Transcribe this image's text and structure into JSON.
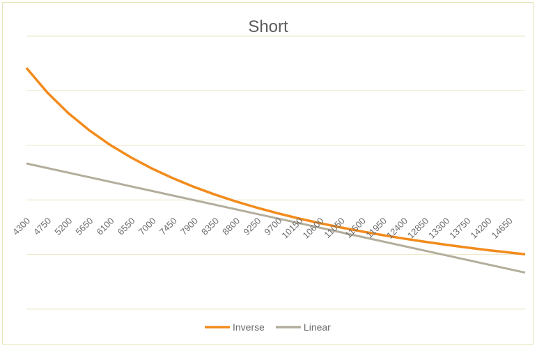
{
  "chart_data": {
    "type": "line",
    "title": "Short",
    "xlabel": "",
    "ylabel": "",
    "grid": true,
    "legend_position": "bottom",
    "x_tick_labels": [
      "4300",
      "4750",
      "5200",
      "5650",
      "6100",
      "6550",
      "7000",
      "7450",
      "7900",
      "8350",
      "8800",
      "9250",
      "9700",
      "10150",
      "10600",
      "11050",
      "11500",
      "11950",
      "12400",
      "12850",
      "13300",
      "13750",
      "14200",
      "14650"
    ],
    "x_range": [
      4300,
      15000
    ],
    "series": [
      {
        "name": "Inverse",
        "color": "#f28b1c",
        "x": [
          4300,
          4750,
          5200,
          5650,
          6100,
          6550,
          7000,
          7450,
          7900,
          8350,
          8800,
          9250,
          9700,
          10150,
          10600,
          11050,
          11500,
          11950,
          12400,
          12850,
          13300,
          13750,
          14200,
          14650,
          15000
        ],
        "values": [
          1.3256,
          1.1895,
          1.0769,
          0.9823,
          0.9016,
          0.8321,
          0.7714,
          0.7181,
          0.6709,
          0.6287,
          0.5909,
          0.5568,
          0.5258,
          0.4975,
          0.4717,
          0.448,
          0.4261,
          0.4059,
          0.3871,
          0.3696,
          0.3534,
          0.3382,
          0.3239,
          0.3106,
          0.3008
        ]
      },
      {
        "name": "Linear",
        "color": "#b3ad9c",
        "x": [
          4300,
          15000
        ],
        "values": [
          0.8,
          0.2
        ]
      }
    ],
    "ylim": [
      0,
      1.5
    ]
  }
}
